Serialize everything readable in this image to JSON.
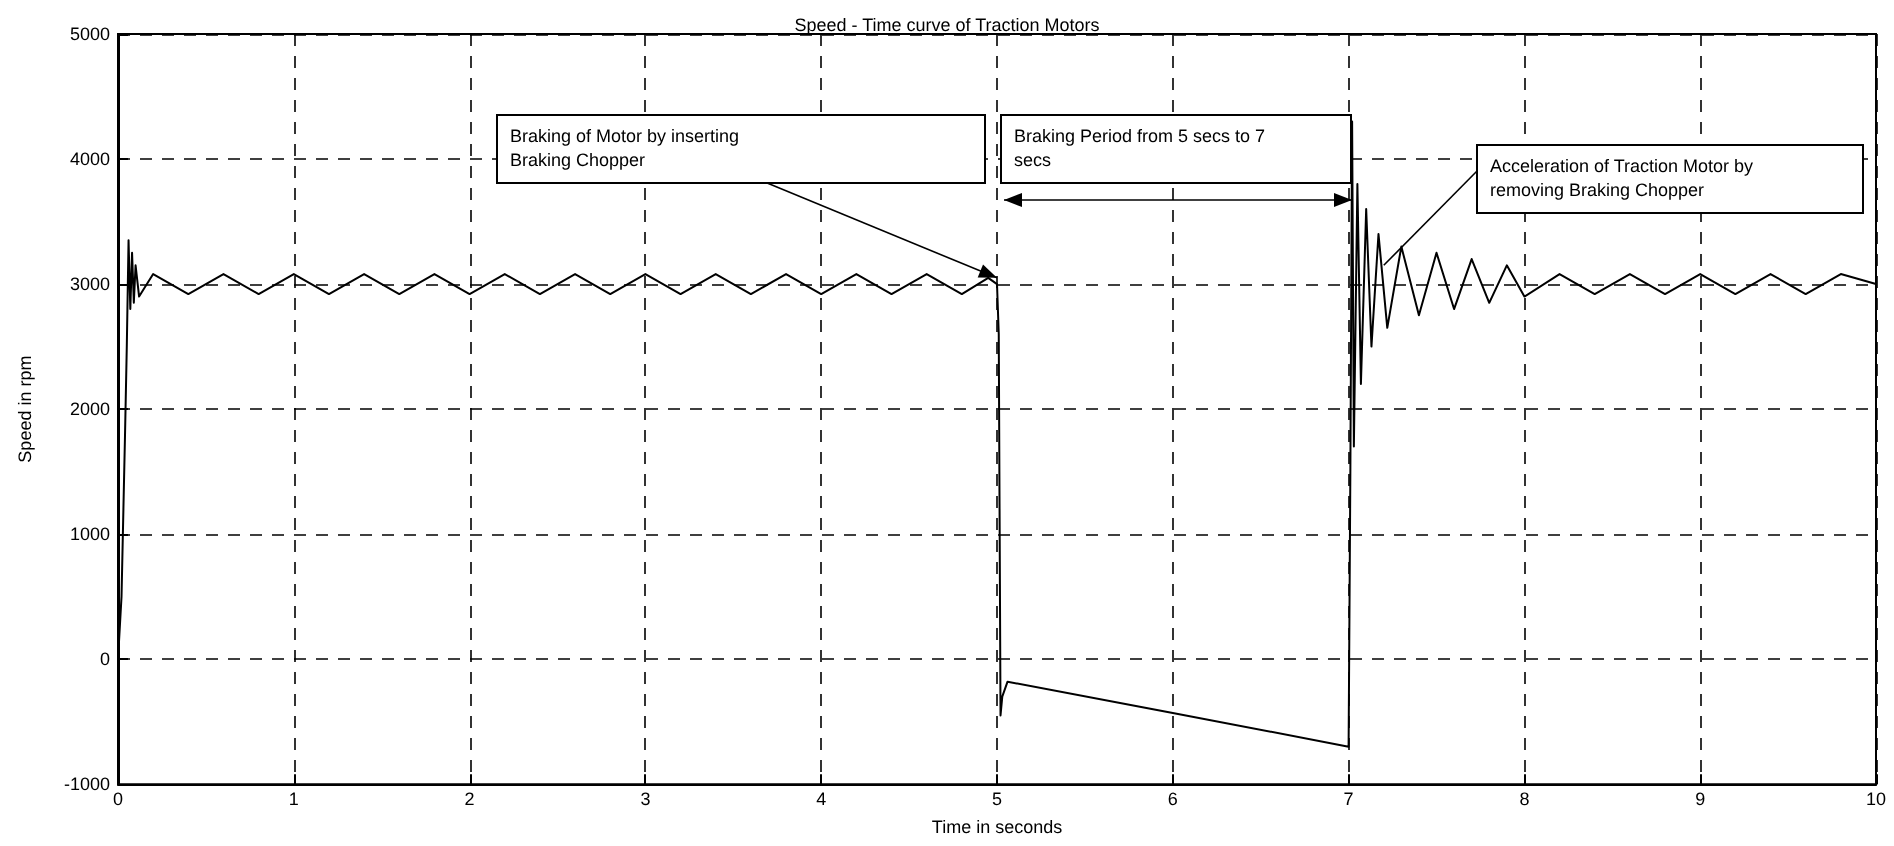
{
  "chart_data": {
    "type": "line",
    "title": "Speed - Time curve of Traction Motors",
    "xlabel": "Time in seconds",
    "ylabel": "Speed in rpm",
    "xlim": [
      0,
      10
    ],
    "xticks": [
      0,
      1,
      2,
      3,
      4,
      5,
      6,
      7,
      8,
      9,
      10
    ],
    "ylim": [
      -1000,
      5000
    ],
    "yticks": [
      -1000,
      0,
      1000,
      2000,
      3000,
      4000,
      5000
    ],
    "grid": true,
    "marker": "none",
    "line_style": "solid",
    "annotations": [
      {
        "text": "Braking of Motor by inserting Braking Chopper",
        "x": 5,
        "y": 3050
      },
      "Braking Period from 5 secs to 7 secs",
      {
        "text": "Acceleration of Traction Motor by removing Braking Chopper",
        "x": 7.2,
        "y": 3150
      }
    ],
    "series": [
      {
        "color": "#000000",
        "x": [
          0,
          0.02,
          0.04,
          0.05,
          0.06,
          0.07,
          0.08,
          0.09,
          0.1,
          0.12,
          0.2,
          0.4,
          0.6,
          0.8,
          1.0,
          1.2,
          1.4,
          1.6,
          1.8,
          2.0,
          2.2,
          2.4,
          2.6,
          2.8,
          3.0,
          3.2,
          3.4,
          3.6,
          3.8,
          4.0,
          4.2,
          4.4,
          4.6,
          4.8,
          4.95,
          5.0,
          5.01,
          5.02,
          5.03,
          5.06,
          6.0,
          7.0,
          7.01,
          7.02,
          7.03,
          7.05,
          7.07,
          7.1,
          7.13,
          7.17,
          7.22,
          7.3,
          7.4,
          7.5,
          7.6,
          7.7,
          7.8,
          7.9,
          8.0,
          8.2,
          8.4,
          8.6,
          8.8,
          9.0,
          9.2,
          9.4,
          9.6,
          9.8,
          10.0
        ],
        "values": [
          0,
          500,
          1800,
          2500,
          3350,
          2800,
          3250,
          2850,
          3150,
          2900,
          3080,
          2920,
          3080,
          2920,
          3080,
          2920,
          3080,
          2920,
          3080,
          2920,
          3080,
          2920,
          3080,
          2920,
          3080,
          2920,
          3080,
          2920,
          3080,
          2920,
          3080,
          2920,
          3080,
          2920,
          3050,
          3000,
          2600,
          -450,
          -300,
          -180,
          -430,
          -700,
          1500,
          4300,
          1700,
          3800,
          2200,
          3600,
          2500,
          3400,
          2650,
          3300,
          2750,
          3250,
          2800,
          3200,
          2850,
          3150,
          2900,
          3080,
          2920,
          3080,
          2920,
          3080,
          2920,
          3080,
          2920,
          3080,
          3000
        ]
      }
    ]
  }
}
